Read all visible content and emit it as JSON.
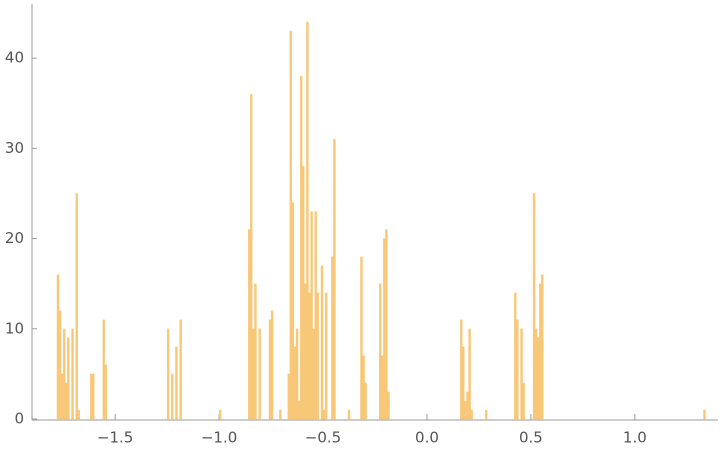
{
  "chart_data": {
    "type": "histogram",
    "color": "#f8c778",
    "bins": [
      -1.78,
      -1.77,
      -1.76,
      -1.75,
      -1.74,
      -1.73,
      -1.72,
      -1.71,
      -1.7,
      -1.69,
      -1.68,
      -1.67,
      -1.62,
      -1.61,
      -1.6,
      -1.56,
      -1.55,
      -1.54,
      -1.25,
      -1.24,
      -1.23,
      -1.22,
      -1.21,
      -1.2,
      -1.19,
      -1.18,
      -1,
      -0.99,
      -0.86,
      -0.85,
      -0.84,
      -0.83,
      -0.82,
      -0.81,
      -0.8,
      -0.76,
      -0.75,
      -0.74,
      -0.71,
      -0.7,
      -0.67,
      -0.66,
      -0.65,
      -0.64,
      -0.63,
      -0.62,
      -0.61,
      -0.6,
      -0.59,
      -0.58,
      -0.57,
      -0.56,
      -0.55,
      -0.54,
      -0.53,
      -0.52,
      -0.51,
      -0.5,
      -0.49,
      -0.48,
      -0.47,
      -0.46,
      -0.45,
      -0.44,
      -0.38,
      -0.37,
      -0.32,
      -0.31,
      -0.3,
      -0.29,
      -0.23,
      -0.22,
      -0.21,
      -0.2,
      -0.19,
      -0.18,
      0.16,
      0.17,
      0.18,
      0.19,
      0.2,
      0.21,
      0.22,
      0.28,
      0.29,
      0.42,
      0.43,
      0.44,
      0.45,
      0.46,
      0.47,
      0.48,
      0.49,
      0.5,
      0.51,
      0.52,
      0.53,
      0.54,
      0.55,
      0.56,
      1.33,
      1.34
    ],
    "values": [
      16,
      12,
      5,
      10,
      4,
      9,
      0,
      10,
      0,
      25,
      1,
      0,
      5,
      5,
      0,
      11,
      6,
      0,
      10,
      0,
      5,
      0,
      8,
      0,
      11,
      0,
      1,
      0,
      21,
      36,
      10,
      15,
      0,
      10,
      0,
      11,
      12,
      0,
      1,
      0,
      5,
      43,
      24,
      8,
      10,
      2,
      38,
      28,
      15,
      44,
      14,
      23,
      10,
      23,
      14,
      0,
      17,
      1,
      14,
      0,
      0,
      18,
      31,
      0,
      1,
      0,
      18,
      7,
      4,
      0,
      15,
      7,
      20,
      21,
      3,
      0,
      11,
      8,
      2,
      3,
      10,
      1,
      0,
      1,
      0,
      14,
      11,
      0,
      10,
      4,
      0,
      0,
      0,
      0,
      25,
      10,
      9,
      15,
      16,
      0,
      1
    ],
    "xlim": [
      -1.9,
      1.4
    ],
    "xticks": [
      {
        "value": -1.5,
        "label": "−1.5"
      },
      {
        "value": -1,
        "label": "−1.0"
      },
      {
        "value": -0.5,
        "label": "−0.5"
      },
      {
        "value": 0,
        "label": "0.0"
      },
      0.5,
      {
        "value": 1,
        "label": "1.0"
      }
    ],
    "ylim": [
      0,
      46
    ],
    "yticks": [
      0,
      10,
      20,
      30,
      40
    ]
  }
}
